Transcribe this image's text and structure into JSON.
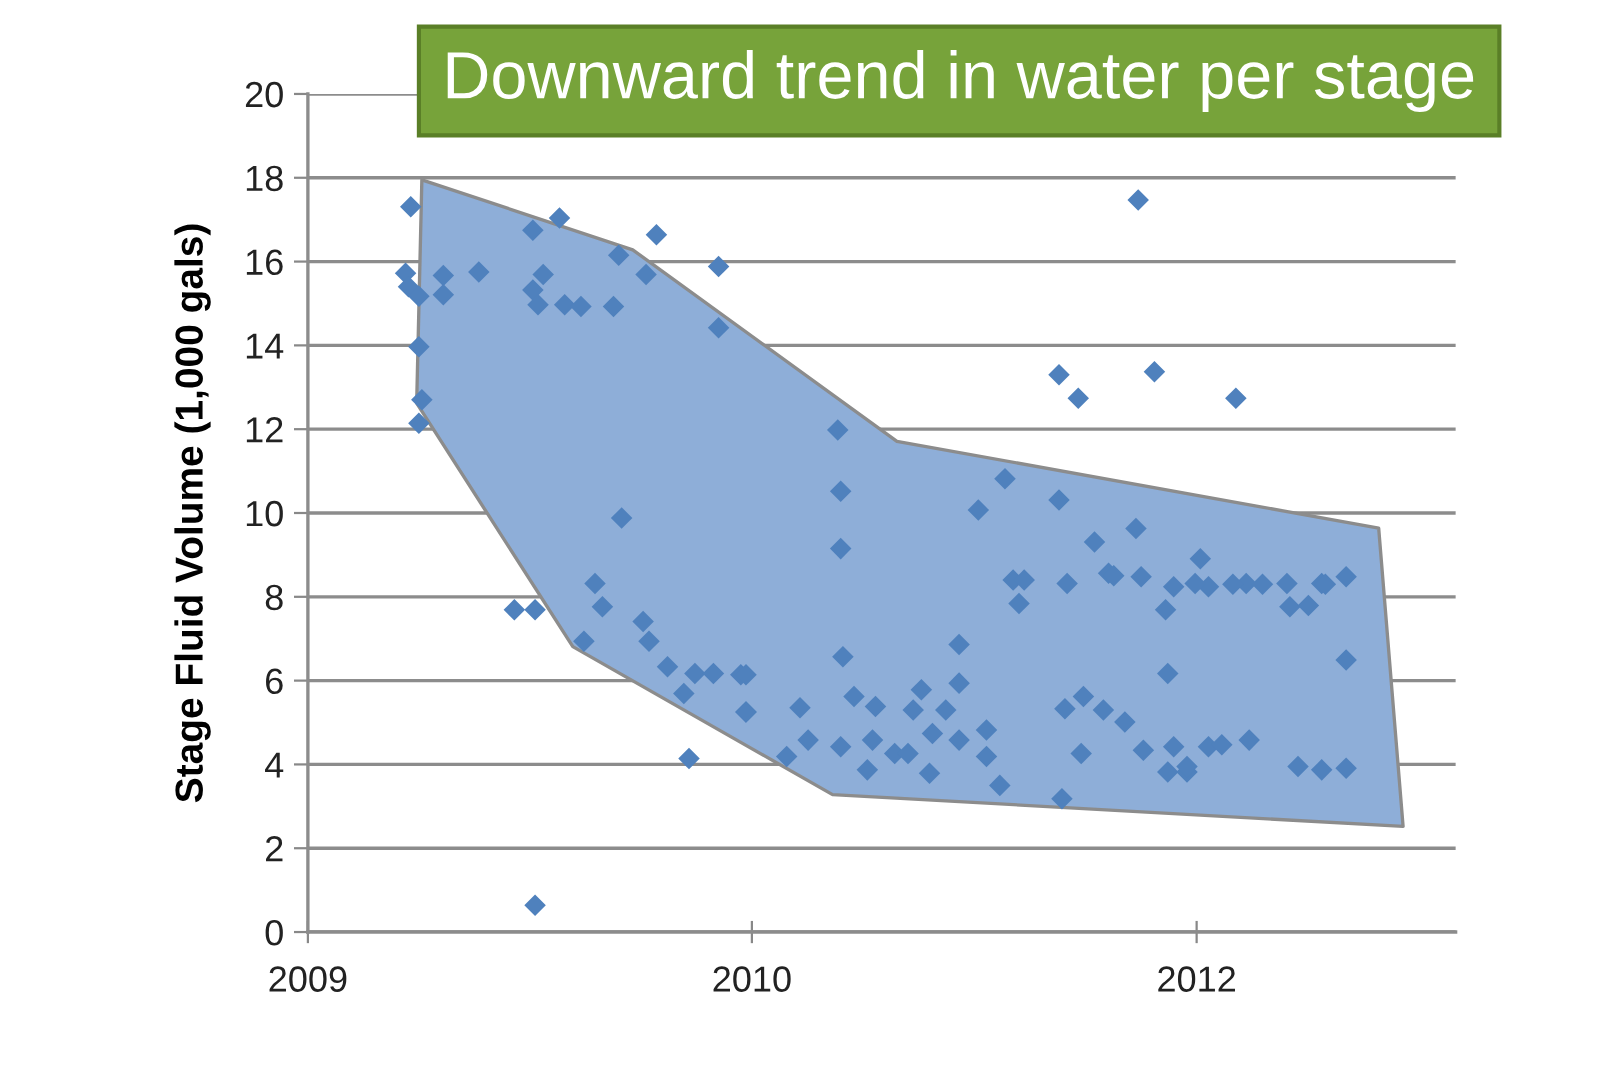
{
  "chart_data": {
    "type": "scatter",
    "title": "Downward trend in water per stage",
    "ylabel": "Stage Fluid Volume (1,000 gals)",
    "xlim": [
      "2009-03-28",
      "2013-06-26"
    ],
    "xticks": [
      {
        "value": "2009-03-28",
        "label": "2009"
      },
      {
        "value": "2010-11-18",
        "label": "2010"
      },
      {
        "value": "2012-07-11",
        "label": "2012"
      }
    ],
    "ylim": [
      0,
      20
    ],
    "yticks": [
      0,
      2,
      4,
      6,
      8,
      10,
      12,
      14,
      16,
      18,
      20
    ],
    "grid": "y",
    "series": [
      {
        "type": "area",
        "color": "#8eaed8",
        "x": [
          "2009-08-29",
          "2010-06-10",
          "2011-06-02",
          "2013-03-14",
          "2013-04-16",
          "2011-03-07",
          "2010-03-21",
          "2009-08-22"
        ],
        "values": [
          17.95,
          16.28,
          11.71,
          9.64,
          2.52,
          3.28,
          6.81,
          12.62
        ]
      },
      {
        "color": "#4f81bd",
        "marker": "diamond",
        "x": [
          "2009-08-14",
          "2009-08-07",
          "2009-08-11",
          "2009-08-25",
          "2009-09-27",
          "2009-09-27",
          "2009-11-14",
          "2009-08-25",
          "2009-08-29",
          "2009-08-25",
          "2010-01-26",
          "2010-03-03",
          "2010-01-26",
          "2010-02-09",
          "2010-02-02",
          "2010-03-10",
          "2010-04-01",
          "2010-05-15",
          "2010-05-22",
          "2010-06-28",
          "2010-07-12",
          "2010-10-04",
          "2010-10-04",
          "2010-05-26",
          "2010-01-01",
          "2010-01-29",
          "2010-04-20",
          "2010-04-30",
          "2010-04-05",
          "2010-06-24",
          "2010-07-02",
          "2010-07-27",
          "2010-09-02",
          "2010-09-27",
          "2010-11-03",
          "2010-08-18",
          "2010-11-10",
          "2010-08-25",
          "2010-01-29",
          "2012-04-23",
          "2012-01-07",
          "2012-02-02",
          "2012-05-15",
          "2011-03-14",
          "2011-03-18",
          "2011-03-18",
          "2011-10-26",
          "2011-09-20",
          "2012-01-07",
          "2012-04-20",
          "2012-02-24",
          "2012-07-16",
          "2011-11-06",
          "2011-11-14",
          "2012-01-18",
          "2012-03-14",
          "2012-04-27",
          "2012-06-10",
          "2012-07-27",
          "2012-05-30",
          "2010-11-10",
          "2010-11-10",
          "2011-03-21",
          "2011-08-25",
          "2011-08-25",
          "2011-01-22",
          "2011-04-05",
          "2011-05-04",
          "2011-07-05",
          "2011-06-24",
          "2011-08-07",
          "2011-02-02",
          "2011-01-04",
          "2011-03-18",
          "2011-04-30",
          "2011-05-30",
          "2011-04-23",
          "2011-06-17",
          "2011-07-20",
          "2011-07-16",
          "2011-08-25",
          "2011-10-01",
          "2011-10-01",
          "2011-10-19",
          "2012-01-11",
          "2012-01-15",
          "2012-02-09",
          "2012-03-07",
          "2012-04-05",
          "2012-02-06",
          "2012-06-02",
          "2012-04-30",
          "2012-06-10",
          "2012-07-27",
          "2012-06-02",
          "2012-06-28",
          "2012-09-02",
          "2012-07-09",
          "2012-09-16",
          "2012-11-10",
          "2012-12-27",
          "2013-01-29",
          "2012-11-14",
          "2012-12-09",
          "2013-01-29",
          "2012-09-20",
          "2012-08-14",
          "2012-11-25",
          "2012-12-27",
          "2013-01-29",
          "2012-06-28",
          "2011-11-21",
          "2012-03-21",
          "2012-08-29",
          "2012-10-08",
          "2013-01-01"
        ],
        "values": [
          17.31,
          15.72,
          15.4,
          15.17,
          15.67,
          15.21,
          15.75,
          13.97,
          12.7,
          12.14,
          16.75,
          17.04,
          15.32,
          15.69,
          14.97,
          14.97,
          14.93,
          14.93,
          16.15,
          15.69,
          16.64,
          15.88,
          14.42,
          9.88,
          7.69,
          7.69,
          8.32,
          7.76,
          6.94,
          7.41,
          6.94,
          6.33,
          6.17,
          6.17,
          6.14,
          5.69,
          5.25,
          4.14,
          0.64,
          17.47,
          13.3,
          12.74,
          13.37,
          11.98,
          10.52,
          9.15,
          10.82,
          10.07,
          10.31,
          9.63,
          9.31,
          8.91,
          8.4,
          7.84,
          8.32,
          8.56,
          8.48,
          8.24,
          8.24,
          7.69,
          6.14,
          5.25,
          6.57,
          6.86,
          5.94,
          5.35,
          5.62,
          5.38,
          5.78,
          5.3,
          5.3,
          4.58,
          4.19,
          4.42,
          4.58,
          4.26,
          3.87,
          4.26,
          4.74,
          3.79,
          4.58,
          4.82,
          4.19,
          3.5,
          3.18,
          5.33,
          5.62,
          5.3,
          5.01,
          4.26,
          6.17,
          4.34,
          4.42,
          4.42,
          3.82,
          3.82,
          12.74,
          8.32,
          8.32,
          8.32,
          8.32,
          8.48,
          7.76,
          7.79,
          6.49,
          4.58,
          4.47,
          3.95,
          3.87,
          3.91,
          3.95,
          8.4,
          8.5,
          8.3,
          8.3,
          8.3
        ]
      }
    ]
  }
}
